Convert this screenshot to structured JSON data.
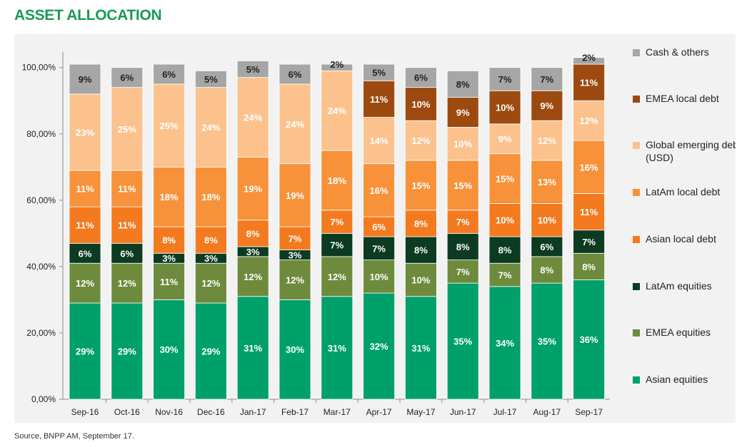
{
  "header": {
    "title": "ASSET ALLOCATION"
  },
  "footer": {
    "source": "Source, BNPP AM, September 17."
  },
  "chart_data": {
    "type": "bar",
    "stacked": true,
    "title": "",
    "xlabel": "",
    "ylabel": "",
    "ylim": [
      0,
      100
    ],
    "yticks": [
      "0,00%",
      "20,00%",
      "40,00%",
      "60,00%",
      "80,00%",
      "100,00%"
    ],
    "grid": false,
    "legend_position": "right",
    "categories": [
      "Sep-16",
      "Oct-16",
      "Nov-16",
      "Dec-16",
      "Jan-17",
      "Feb-17",
      "Mar-17",
      "Apr-17",
      "May-17",
      "Jun-17",
      "Jul-17",
      "Aug-17",
      "Sep-17"
    ],
    "series": [
      {
        "name": "Asian equities",
        "color": "#00a06a",
        "label_color": "#ffffff",
        "values": [
          29,
          29,
          30,
          29,
          31,
          30,
          31,
          32,
          31,
          35,
          34,
          35,
          36
        ]
      },
      {
        "name": "EMEA equities",
        "color": "#6e8a3d",
        "label_color": "#ffffff",
        "values": [
          12,
          12,
          11,
          12,
          12,
          12,
          12,
          10,
          10,
          7,
          7,
          8,
          8
        ]
      },
      {
        "name": "LatAm equities",
        "color": "#0c3b22",
        "label_color": "#ffffff",
        "values": [
          6,
          6,
          3,
          3,
          3,
          3,
          7,
          7,
          8,
          8,
          8,
          6,
          7
        ]
      },
      {
        "name": "Asian local debt",
        "color": "#f47a1f",
        "label_color": "#ffffff",
        "values": [
          11,
          11,
          8,
          8,
          8,
          7,
          7,
          6,
          8,
          7,
          10,
          10,
          11
        ]
      },
      {
        "name": "LatAm local debt",
        "color": "#f7923a",
        "label_color": "#ffffff",
        "values": [
          11,
          11,
          18,
          18,
          19,
          19,
          18,
          16,
          15,
          15,
          15,
          13,
          16
        ]
      },
      {
        "name": "Global emerging debt (USD)",
        "legend_lines": [
          "Global emerging debt",
          "(USD)"
        ],
        "color": "#fbc28e",
        "label_color": "#ffffff",
        "values": [
          23,
          25,
          25,
          24,
          24,
          24,
          24,
          14,
          12,
          10,
          9,
          12,
          12
        ]
      },
      {
        "name": "EMEA local debt",
        "color": "#9c4a10",
        "label_color": "#ffffff",
        "values": [
          0,
          0,
          0,
          0,
          0,
          0,
          0,
          11,
          10,
          9,
          10,
          9,
          11
        ]
      },
      {
        "name": "Cash & others",
        "color": "#a6a6a6",
        "label_color": "#222222",
        "values": [
          9,
          6,
          6,
          5,
          5,
          6,
          2,
          5,
          6,
          8,
          7,
          7,
          2
        ]
      }
    ]
  }
}
